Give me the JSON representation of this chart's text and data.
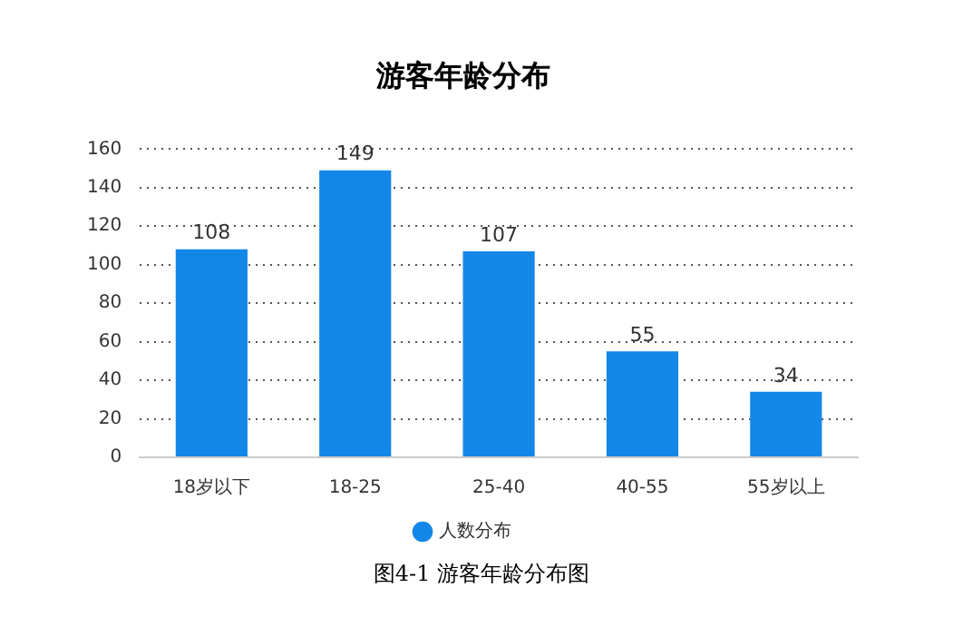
{
  "chart_data": {
    "type": "bar",
    "title": "游客年龄分布",
    "categories": [
      "18岁以下",
      "18-25",
      "25-40",
      "40-55",
      "55岁以上"
    ],
    "series": [
      {
        "name": "人数分布",
        "color": "#1387e8",
        "values": [
          108,
          149,
          107,
          55,
          34
        ]
      }
    ],
    "ylim": [
      0,
      160
    ],
    "yticks": [
      0,
      20,
      40,
      60,
      80,
      100,
      120,
      140,
      160
    ],
    "grid": "y",
    "legend": "bottom",
    "data_labels": true,
    "annotations": [
      "图4-1 游客年龄分布图"
    ]
  }
}
